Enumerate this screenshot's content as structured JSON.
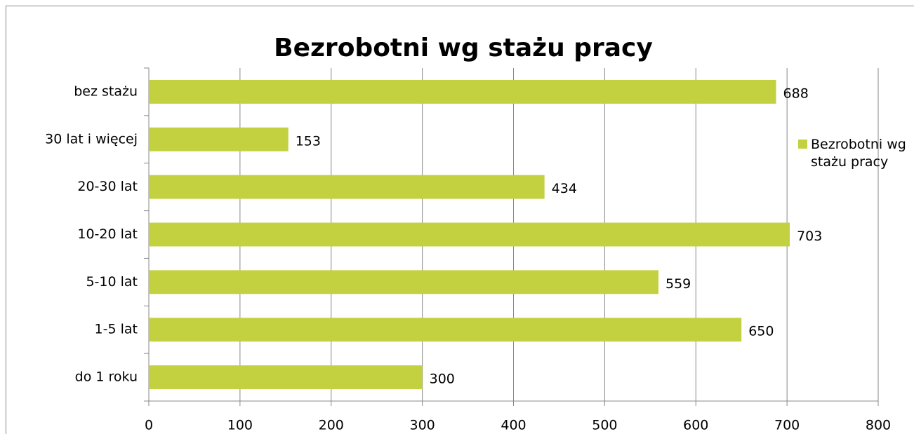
{
  "chart_data": {
    "type": "bar",
    "orientation": "horizontal",
    "title": "Bezrobotni wg stażu pracy",
    "categories": [
      "do 1 roku",
      "1-5 lat",
      "5-10 lat ",
      "10-20 lat",
      "20-30 lat",
      "30 lat i więcej",
      "bez stażu"
    ],
    "series": [
      {
        "name": "Bezrobotni wg stażu pracy",
        "color": "#c3d141",
        "values": [
          300,
          650,
          559,
          703,
          434,
          153,
          688
        ]
      }
    ],
    "xlim": [
      0,
      800
    ],
    "xticks": [
      0,
      100,
      200,
      300,
      400,
      500,
      600,
      700,
      800
    ],
    "grid": true,
    "legend": "right",
    "data_labels": true
  }
}
